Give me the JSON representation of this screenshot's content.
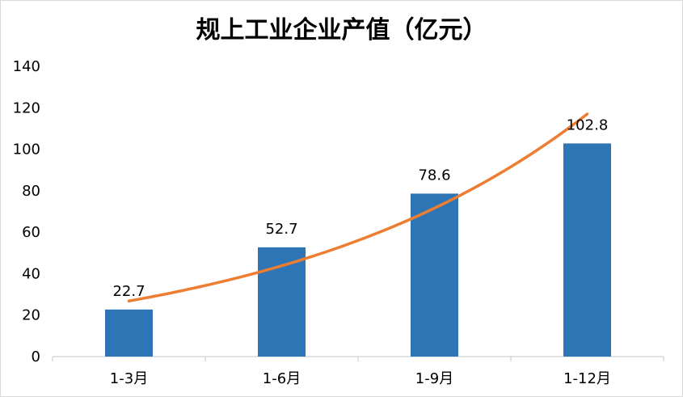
{
  "chart_data": {
    "type": "bar",
    "title": "规上工业企业产值（亿元）",
    "xlabel": "",
    "ylabel": "",
    "categories": [
      "1-3月",
      "1-6月",
      "1-9月",
      "1-12月"
    ],
    "series": [
      {
        "type": "bar",
        "values": [
          22.7,
          52.7,
          78.6,
          102.8
        ],
        "color": "#2e75b6"
      }
    ],
    "trendline": {
      "type": "polynomial",
      "color": "#ed7d31",
      "y_start": 26.8,
      "y_end": 117
    },
    "data_labels": [
      "22.7",
      "52.7",
      "78.6",
      "102.8"
    ],
    "ylim": [
      0,
      140
    ],
    "yticks": [
      0,
      20,
      40,
      60,
      80,
      100,
      120,
      140
    ],
    "ytick_labels": [
      "0",
      "20",
      "40",
      "60",
      "80",
      "100",
      "120",
      "140"
    ],
    "grid": false,
    "legend": "none"
  }
}
